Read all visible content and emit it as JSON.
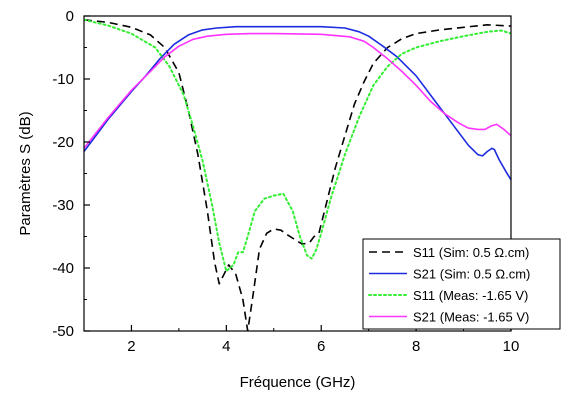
{
  "chart_data": {
    "type": "line",
    "title": "",
    "xlabel": "Fréquence (GHz)",
    "ylabel": "Paramètres S (dB)",
    "xlim": [
      1,
      10
    ],
    "ylim": [
      -50,
      0
    ],
    "xticks": [
      2,
      4,
      6,
      8,
      10
    ],
    "yticks": [
      0,
      -10,
      -20,
      -30,
      -40,
      -50
    ],
    "grid": false,
    "legend_position": "bottom-right",
    "series": [
      {
        "name": "S11 (Sim: 0.5 Ω.cm)",
        "color": "#000000",
        "style": "dashed",
        "x": [
          1.0,
          1.5,
          2.0,
          2.4,
          2.7,
          3.0,
          3.2,
          3.4,
          3.6,
          3.75,
          3.85,
          3.95,
          4.05,
          4.2,
          4.35,
          4.45,
          4.55,
          4.7,
          4.85,
          5.0,
          5.15,
          5.3,
          5.45,
          5.6,
          5.75,
          5.85,
          5.95,
          6.1,
          6.3,
          6.5,
          6.7,
          6.9,
          7.1,
          7.4,
          7.7,
          8.0,
          8.5,
          9.0,
          9.5,
          10.0
        ],
        "y": [
          -0.6,
          -1.0,
          -1.8,
          -3.0,
          -5.0,
          -9.0,
          -15.0,
          -22.0,
          -31.0,
          -39.0,
          -42.5,
          -41.0,
          -39.5,
          -41.0,
          -45.0,
          -50.0,
          -45.0,
          -37.0,
          -34.5,
          -33.8,
          -34.0,
          -34.8,
          -35.5,
          -36.2,
          -36.0,
          -35.0,
          -34.5,
          -30.0,
          -24.0,
          -19.0,
          -14.0,
          -10.5,
          -7.5,
          -5.0,
          -3.6,
          -2.8,
          -2.2,
          -1.8,
          -1.4,
          -1.6
        ]
      },
      {
        "name": "S21 (Sim: 0.5 Ω.cm)",
        "color": "#1c2ce0",
        "style": "solid",
        "x": [
          1.0,
          1.5,
          2.0,
          2.3,
          2.6,
          2.9,
          3.2,
          3.5,
          3.8,
          4.2,
          5.0,
          6.0,
          6.5,
          6.8,
          7.0,
          7.3,
          7.6,
          8.0,
          8.4,
          8.8,
          9.1,
          9.3,
          9.4,
          9.5,
          9.6,
          9.65,
          9.75,
          9.9,
          10.0
        ],
        "y": [
          -21.5,
          -16.5,
          -12.0,
          -9.5,
          -6.8,
          -4.5,
          -3.0,
          -2.2,
          -1.9,
          -1.7,
          -1.7,
          -1.7,
          -1.9,
          -2.5,
          -3.2,
          -4.8,
          -6.5,
          -9.5,
          -13.5,
          -17.5,
          -20.5,
          -22.0,
          -22.2,
          -21.5,
          -21.0,
          -21.2,
          -22.8,
          -24.8,
          -26.0
        ]
      },
      {
        "name": "S11 (Meas: -1.65 V)",
        "color": "#33ee33",
        "style": "dotted",
        "x": [
          1.0,
          1.5,
          2.0,
          2.5,
          2.8,
          3.1,
          3.3,
          3.5,
          3.7,
          3.85,
          4.0,
          4.15,
          4.25,
          4.35,
          4.45,
          4.6,
          4.8,
          5.0,
          5.2,
          5.4,
          5.55,
          5.7,
          5.8,
          5.9,
          6.0,
          6.2,
          6.5,
          6.8,
          7.1,
          7.4,
          7.7,
          8.0,
          8.5,
          9.0,
          9.5,
          9.8,
          10.0
        ],
        "y": [
          -0.6,
          -1.5,
          -2.8,
          -5.0,
          -8.0,
          -12.5,
          -17.5,
          -23.0,
          -30.0,
          -36.0,
          -40.5,
          -39.5,
          -37.5,
          -37.5,
          -35.0,
          -31.0,
          -29.0,
          -28.5,
          -28.2,
          -31.0,
          -35.0,
          -38.0,
          -38.5,
          -37.0,
          -34.5,
          -29.0,
          -22.0,
          -16.0,
          -11.0,
          -8.0,
          -6.0,
          -5.0,
          -4.0,
          -3.2,
          -2.5,
          -2.3,
          -2.8
        ]
      },
      {
        "name": "S21 (Meas: -1.65 V)",
        "color": "#ff33ff",
        "style": "solid",
        "x": [
          1.0,
          1.5,
          2.0,
          2.4,
          2.7,
          3.0,
          3.3,
          3.6,
          4.0,
          4.5,
          5.0,
          6.0,
          6.6,
          6.9,
          7.1,
          7.4,
          7.7,
          8.0,
          8.3,
          8.6,
          8.9,
          9.1,
          9.3,
          9.45,
          9.6,
          9.7,
          9.85,
          10.0
        ],
        "y": [
          -21.0,
          -16.2,
          -11.8,
          -8.8,
          -6.5,
          -4.8,
          -3.7,
          -3.2,
          -2.9,
          -2.8,
          -2.8,
          -2.9,
          -3.3,
          -4.0,
          -5.0,
          -6.8,
          -8.8,
          -11.0,
          -13.5,
          -15.5,
          -17.0,
          -17.8,
          -18.0,
          -18.0,
          -17.4,
          -17.2,
          -18.0,
          -19.0
        ]
      }
    ]
  }
}
